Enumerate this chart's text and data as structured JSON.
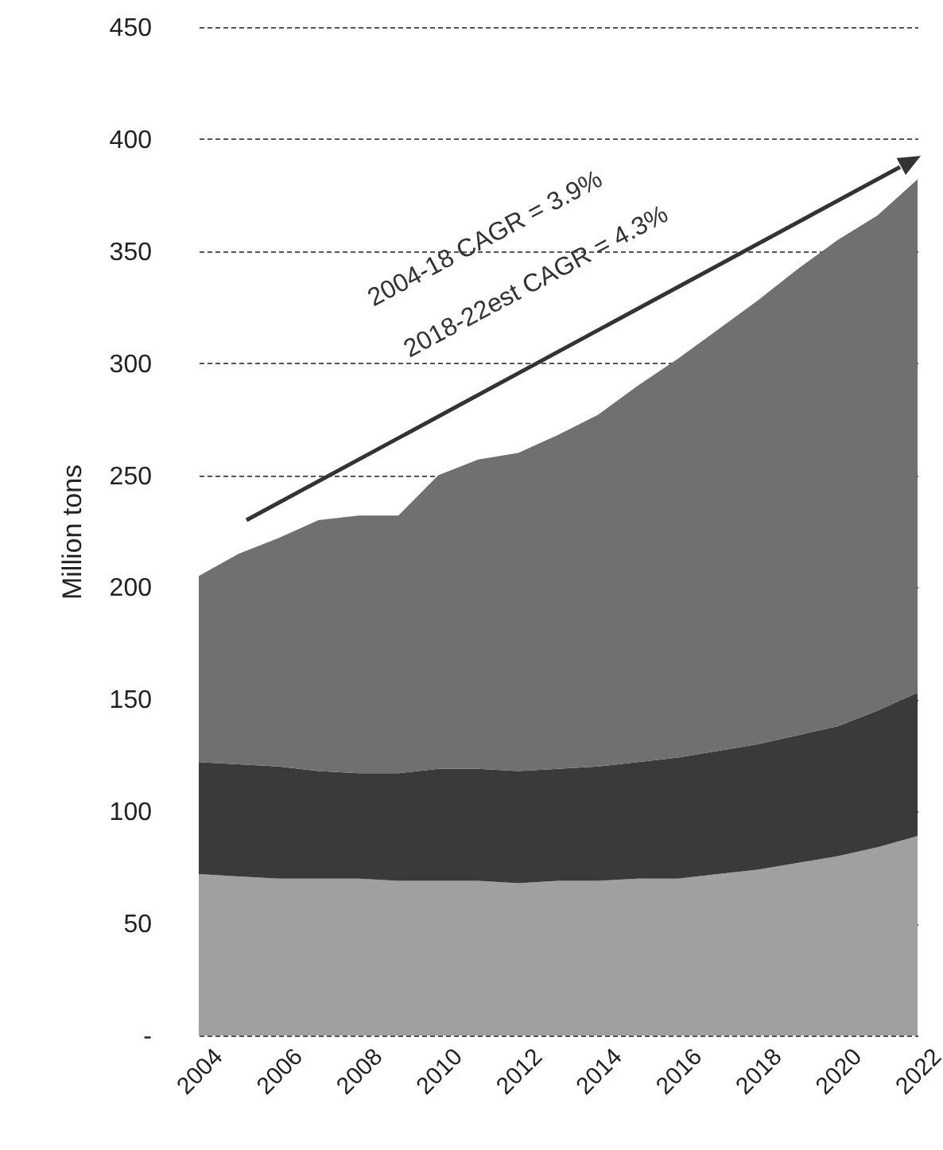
{
  "chart_data": {
    "type": "area",
    "stacked": true,
    "ylabel": "Million tons",
    "x": [
      2004,
      2005,
      2006,
      2007,
      2008,
      2009,
      2010,
      2011,
      2012,
      2013,
      2014,
      2015,
      2016,
      2017,
      2018,
      2019,
      2020,
      2021,
      2022
    ],
    "series": [
      {
        "color": "#a0a0a0",
        "values": [
          72,
          71,
          70,
          70,
          70,
          69,
          69,
          69,
          68,
          69,
          69,
          70,
          70,
          72,
          74,
          77,
          80,
          84,
          89
        ]
      },
      {
        "color": "#3a3a3a",
        "values": [
          50,
          50,
          50,
          48,
          47,
          48,
          50,
          50,
          50,
          50,
          51,
          52,
          54,
          55,
          56,
          57,
          58,
          61,
          64
        ]
      },
      {
        "color": "#707070",
        "values": [
          83,
          94,
          102,
          112,
          115,
          115,
          131,
          138,
          142,
          149,
          157,
          168,
          178,
          188,
          198,
          208,
          217,
          221,
          229
        ]
      }
    ],
    "xlim": [
      2004,
      2022
    ],
    "xticks": [
      2004,
      2006,
      2008,
      2010,
      2012,
      2014,
      2016,
      2018,
      2020,
      2022
    ],
    "ylim": [
      0,
      450
    ],
    "yticks": [
      {
        "value": 0,
        "label": "-"
      },
      50,
      100,
      150,
      200,
      250,
      300,
      350,
      400,
      450
    ],
    "grid": "y",
    "annotations": [
      "2004-18 CAGR = 3.9%",
      "2018-22est CAGR = 4.3%"
    ]
  }
}
